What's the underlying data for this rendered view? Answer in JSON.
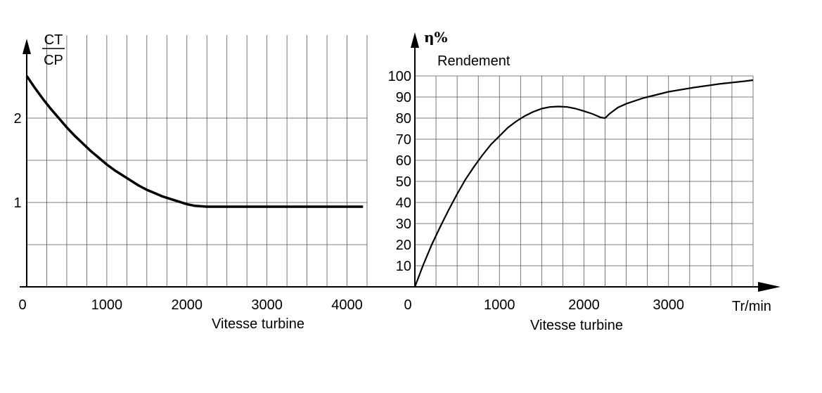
{
  "chart_data": [
    {
      "type": "line",
      "title": "",
      "ylabel_num": "CT",
      "ylabel_den": "CP",
      "xlabel": "Vitesse turbine",
      "xlim": [
        0,
        4250
      ],
      "ylim": [
        0,
        2.5
      ],
      "grid": true,
      "xticks": [
        "0",
        "1000",
        "2000",
        "3000",
        "4000"
      ],
      "xtick_values": [
        0,
        1000,
        2000,
        3000,
        4000
      ],
      "yticks": [
        "1",
        "2"
      ],
      "ytick_values": [
        1,
        2
      ],
      "series": [
        {
          "x": [
            0,
            100,
            200,
            300,
            400,
            500,
            600,
            700,
            800,
            900,
            1000,
            1100,
            1200,
            1300,
            1400,
            1500,
            1600,
            1700,
            1800,
            1900,
            2000,
            2100,
            2250,
            2500,
            3000,
            3500,
            4000,
            4200
          ],
          "y": [
            2.5,
            2.36,
            2.23,
            2.11,
            2.0,
            1.89,
            1.79,
            1.7,
            1.61,
            1.53,
            1.45,
            1.38,
            1.32,
            1.26,
            1.2,
            1.15,
            1.11,
            1.07,
            1.04,
            1.01,
            0.98,
            0.96,
            0.95,
            0.95,
            0.95,
            0.95,
            0.95,
            0.95
          ]
        }
      ]
    },
    {
      "type": "line",
      "title": "Rendement",
      "ylabel": "η%",
      "xlabel": "Vitesse turbine",
      "xunit": "Tr/min",
      "xlim": [
        0,
        4000
      ],
      "ylim": [
        0,
        100
      ],
      "grid": true,
      "xticks": [
        "0",
        "1000",
        "2000",
        "3000"
      ],
      "xtick_values": [
        0,
        1000,
        2000,
        3000
      ],
      "yticks": [
        "10",
        "20",
        "30",
        "40",
        "50",
        "60",
        "70",
        "80",
        "90",
        "100"
      ],
      "ytick_values": [
        10,
        20,
        30,
        40,
        50,
        60,
        70,
        80,
        90,
        100
      ],
      "series": [
        {
          "x": [
            0,
            100,
            200,
            300,
            400,
            500,
            600,
            700,
            800,
            900,
            1000,
            1100,
            1200,
            1300,
            1400,
            1500,
            1600,
            1700,
            1800,
            1900,
            2000,
            2100,
            2200,
            2250,
            2300,
            2400,
            2500,
            2700,
            3000,
            3300,
            3600,
            3900,
            4000
          ],
          "y": [
            0,
            10.5,
            20,
            28.5,
            36.5,
            44,
            51,
            57,
            62.5,
            67.5,
            71.5,
            75.5,
            78.5,
            81,
            83,
            84.5,
            85.3,
            85.5,
            85.3,
            84.5,
            83.3,
            82,
            80.3,
            80,
            82,
            85,
            86.8,
            89.5,
            92.5,
            94.5,
            96.2,
            97.5,
            98
          ]
        }
      ]
    }
  ]
}
